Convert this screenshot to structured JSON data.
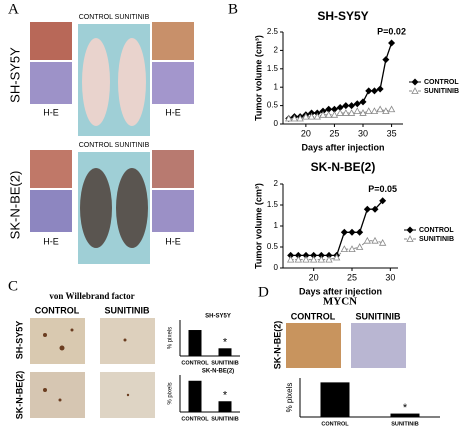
{
  "figure": {
    "labels": {
      "a": "A",
      "b": "B",
      "c": "C",
      "d": "D"
    },
    "panel_a": {
      "rows": [
        "SH-SY5Y",
        "SK-N-BE(2)"
      ],
      "groups": "CONTROL SUNITINIB",
      "stain": "H-E"
    },
    "panel_c": {
      "title": "von Willebrand factor",
      "columns": [
        "CONTROL",
        "SUNITINIB"
      ],
      "rows": [
        "SH-SY5Y",
        "SK-N-BE(2)"
      ]
    },
    "panel_d": {
      "title": "MYCN",
      "columns": [
        "CONTROL",
        "SUNITINIB"
      ],
      "row": "SK-N-BE(2)"
    }
  },
  "chart_data": [
    {
      "type": "line",
      "title": "SH-SY5Y",
      "xlabel": "Days after injection",
      "ylabel": "Tumor volume (cm³)",
      "annotation": "P=0.02",
      "legend": "right",
      "x": [
        17,
        18,
        19,
        20,
        21,
        22,
        23,
        24,
        25,
        26,
        27,
        28,
        29,
        30,
        31,
        32,
        33,
        34,
        35
      ],
      "series": [
        {
          "name": "CONTROL",
          "color": "#000000",
          "marker": "diamond",
          "values": [
            0.15,
            0.2,
            0.2,
            0.25,
            0.3,
            0.3,
            0.35,
            0.4,
            0.4,
            0.45,
            0.5,
            0.5,
            0.55,
            0.6,
            0.9,
            0.9,
            0.95,
            1.75,
            2.2
          ]
        },
        {
          "name": "SUNITINIB",
          "color": "#888888",
          "marker": "triangle",
          "values": [
            0.15,
            0.15,
            0.15,
            0.2,
            0.2,
            0.2,
            0.25,
            0.25,
            0.25,
            0.3,
            0.3,
            0.3,
            0.35,
            0.3,
            0.35,
            0.35,
            0.4,
            0.35,
            0.4
          ]
        }
      ],
      "xlim": [
        16,
        37
      ],
      "xticks": [
        20,
        25,
        30,
        35
      ],
      "ylim": [
        0,
        2.5
      ],
      "yticks": [
        0,
        0.5,
        1,
        1.5,
        2,
        2.5
      ]
    },
    {
      "type": "line",
      "title": "SK-N-BE(2)",
      "xlabel": "Days after injection",
      "ylabel": "Tumor volume (cm³)",
      "annotation": "P=0.05",
      "legend": "right",
      "x": [
        17,
        18,
        19,
        20,
        21,
        22,
        23,
        24,
        25,
        26,
        27,
        28,
        29
      ],
      "series": [
        {
          "name": "CONTROL",
          "color": "#000000",
          "marker": "diamond",
          "values": [
            0.3,
            0.3,
            0.3,
            0.3,
            0.3,
            0.3,
            0.3,
            0.85,
            0.85,
            0.85,
            1.4,
            1.4,
            1.6
          ]
        },
        {
          "name": "SUNITINIB",
          "color": "#888888",
          "marker": "triangle",
          "values": [
            0.2,
            0.2,
            0.2,
            0.2,
            0.2,
            0.2,
            0.25,
            0.45,
            0.45,
            0.5,
            0.65,
            0.65,
            0.6
          ]
        }
      ],
      "xlim": [
        16,
        31
      ],
      "xticks": [
        20,
        25,
        30
      ],
      "ylim": [
        0,
        2
      ],
      "yticks": [
        0,
        0.5,
        1,
        1.5,
        2
      ]
    },
    {
      "type": "bar",
      "title": "SH-SY5Y",
      "ylabel": "% pixels",
      "annotation": "*",
      "color": "#000000",
      "categories": [
        "CONTROL",
        "SUNITINIB"
      ],
      "values": [
        4.6,
        1.3
      ],
      "ylim": [
        0,
        6.5
      ]
    },
    {
      "type": "bar",
      "title": "SK-N-BE(2)",
      "ylabel": "% pixels",
      "annotation": "*",
      "color": "#000000",
      "categories": [
        "CONTROL",
        "SUNITINIB"
      ],
      "values": [
        5.4,
        1.8
      ],
      "ylim": [
        0,
        6.5
      ]
    },
    {
      "type": "bar",
      "ylabel": "% pixels",
      "annotation": "*",
      "color": "#000000",
      "categories": [
        "CONTROL",
        "SUNITINIB"
      ],
      "values": [
        35,
        3
      ],
      "ylim": [
        0,
        40
      ]
    }
  ]
}
